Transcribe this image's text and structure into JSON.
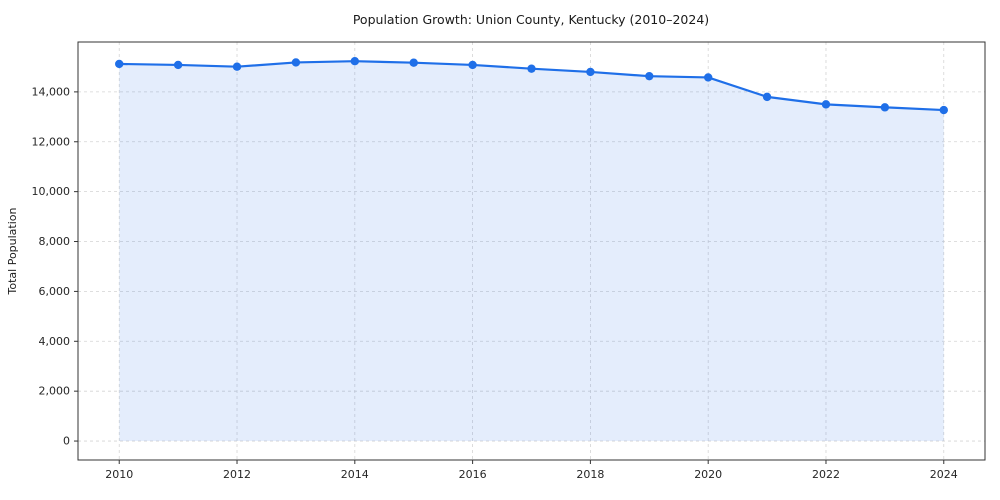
{
  "chart_data": {
    "type": "line",
    "title": "Population Growth: Union County, Kentucky (2010–2024)",
    "xlabel": "",
    "ylabel": "Total Population",
    "x": [
      2010,
      2011,
      2012,
      2013,
      2014,
      2015,
      2016,
      2017,
      2018,
      2019,
      2020,
      2021,
      2022,
      2023,
      2024
    ],
    "values": [
      15120,
      15080,
      15010,
      15180,
      15230,
      15170,
      15080,
      14930,
      14800,
      14630,
      14580,
      13800,
      13500,
      13380,
      13270
    ],
    "xticks": [
      2010,
      2012,
      2014,
      2016,
      2018,
      2020,
      2022,
      2024
    ],
    "yticks": [
      0,
      2000,
      4000,
      6000,
      8000,
      10000,
      12000,
      14000
    ],
    "xlim": [
      2009.3,
      2024.7
    ],
    "ylim": [
      -760,
      16000
    ],
    "grid": true,
    "grid_style": "dashed",
    "area_fill": true,
    "legend": "none",
    "marker": "circle",
    "colors": {
      "line": "#1f6fe8",
      "marker": "#1f6fe8",
      "area": "#1f6fe8",
      "area_opacity": 0.12,
      "grid": "#d4d4d4",
      "spine": "#333333",
      "text": "#1a1a1a"
    }
  }
}
